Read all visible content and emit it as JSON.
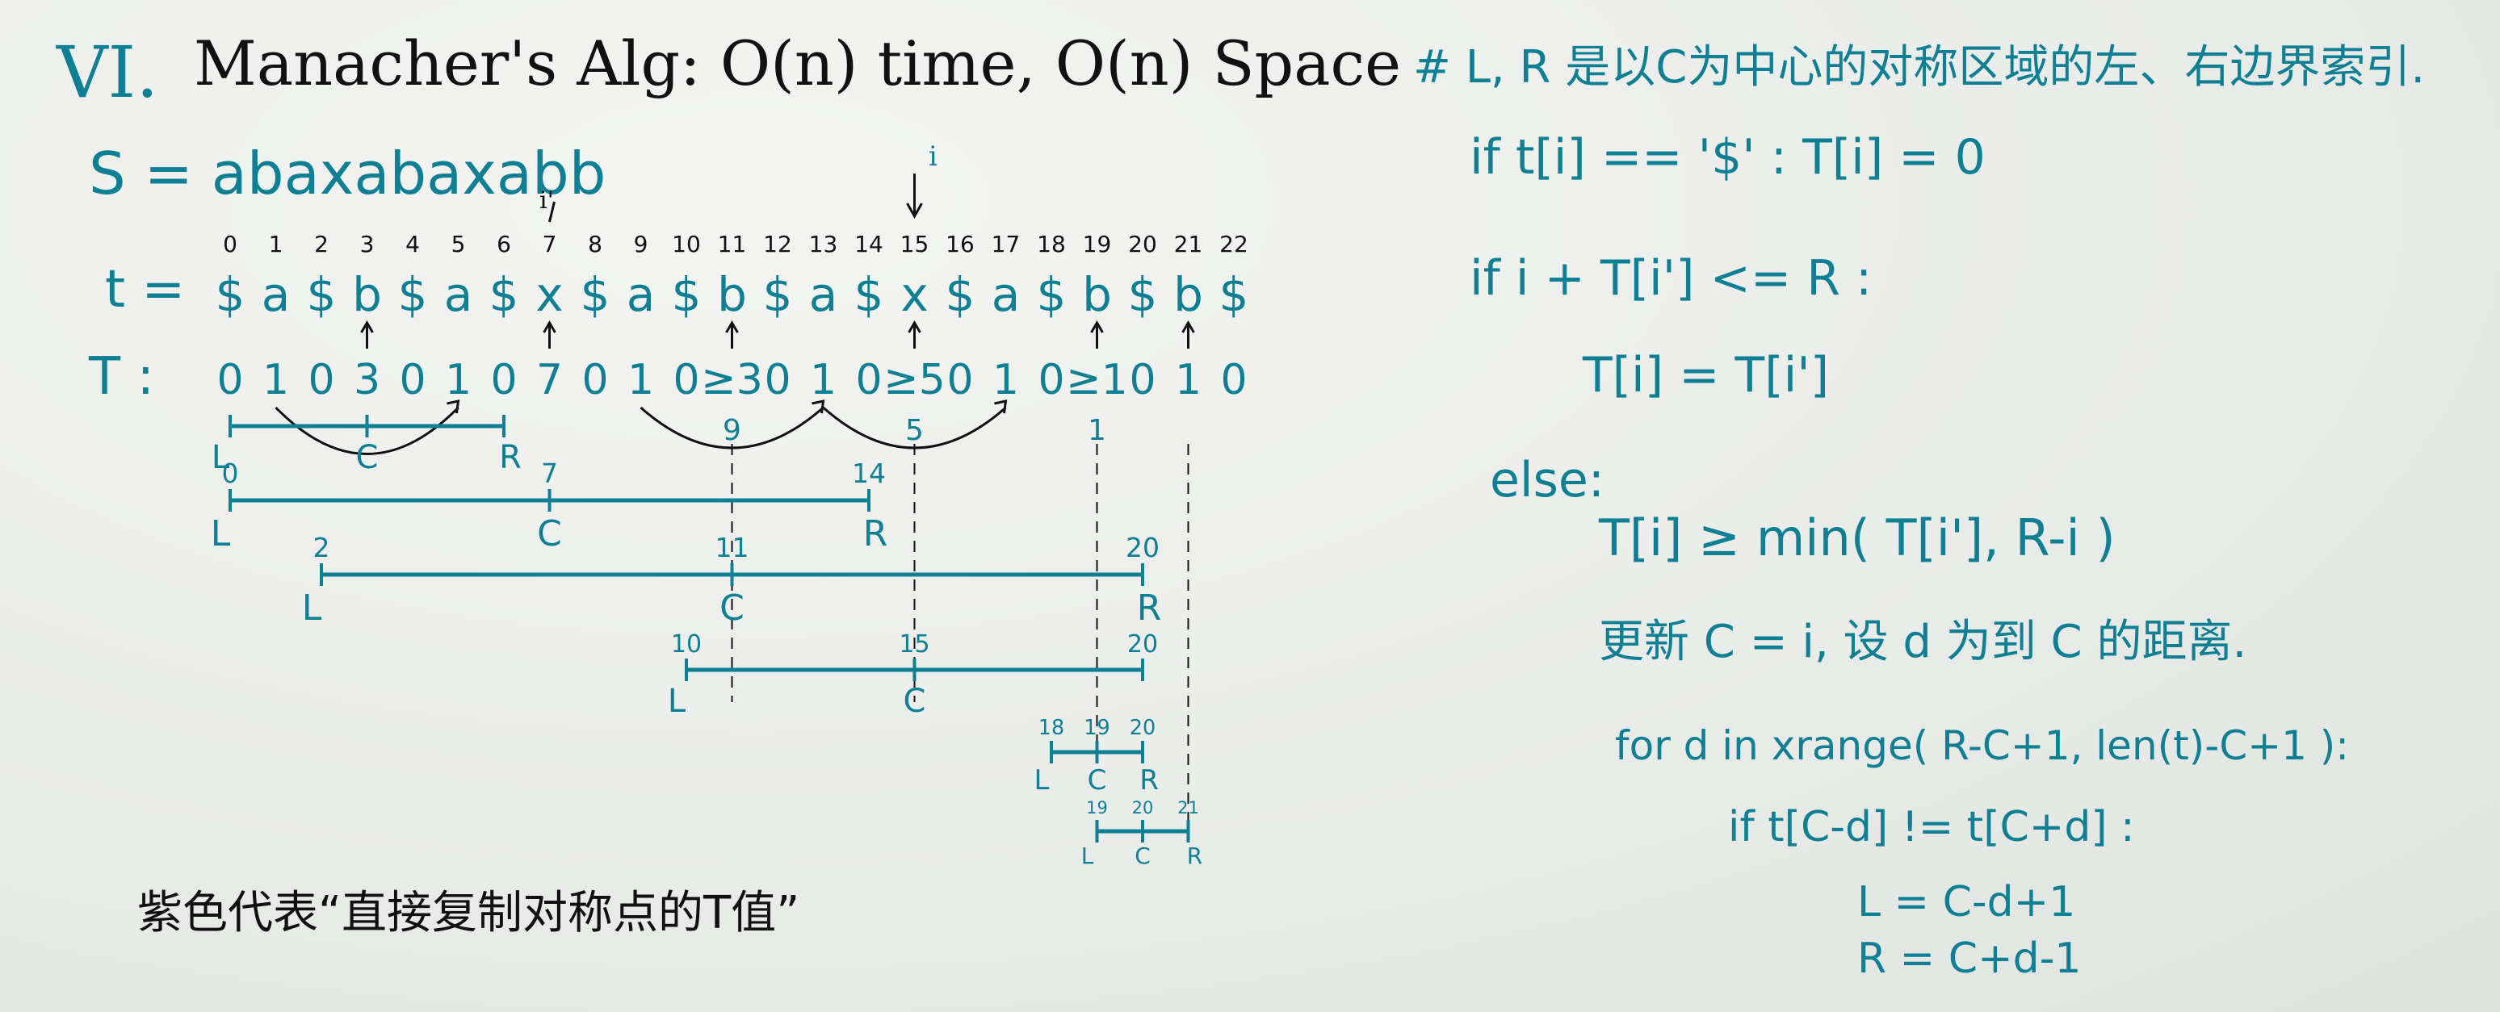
{
  "title": {
    "roman": "VI.",
    "text": "Manacher's Alg: O(n) time, O(n) Space"
  },
  "s_line": "S = abaxabaxabb",
  "t": {
    "label": "t =",
    "indices": [
      "0",
      "1",
      "2",
      "3",
      "4",
      "5",
      "6",
      "7",
      "8",
      "9",
      "10",
      "11",
      "12",
      "13",
      "14",
      "15",
      "16",
      "17",
      "18",
      "19",
      "20",
      "21",
      "22"
    ],
    "chars": [
      "$",
      "a",
      "$",
      "b",
      "$",
      "a",
      "$",
      "x",
      "$",
      "a",
      "$",
      "b",
      "$",
      "a",
      "$",
      "x",
      "$",
      "a",
      "$",
      "b",
      "$",
      "b",
      "$"
    ]
  },
  "T": {
    "label": "T :",
    "values": [
      "0",
      "1",
      "0",
      "3",
      "0",
      "1",
      "0",
      "7",
      "0",
      "1",
      "0",
      "≥3",
      "0",
      "1",
      "0",
      "≥5",
      "0",
      "1",
      "0",
      "≥1",
      "0",
      "1",
      "0"
    ],
    "under_labels": [
      "9",
      "5",
      "1"
    ]
  },
  "pointer_i": "i",
  "pointer_i_prime": "i'",
  "ranges": [
    {
      "L": "L",
      "C": "C",
      "R": "R",
      "l_num": "",
      "c_num": "",
      "r_num": ""
    },
    {
      "L": "L",
      "C": "C",
      "R": "R",
      "l_num": "0",
      "c_num": "7",
      "r_num": "14"
    },
    {
      "L": "L",
      "C": "C",
      "R": "R",
      "l_num": "2",
      "c_num": "11",
      "r_num": "20"
    },
    {
      "L": "L",
      "C": "C",
      "R": "",
      "l_num": "10",
      "c_num": "15",
      "r_num": "20"
    },
    {
      "L": "L",
      "C": "C",
      "R": "R",
      "l_num": "18",
      "c_num": "19",
      "r_num": "20"
    },
    {
      "L": "L",
      "C": "C",
      "R": "R",
      "l_num": "19",
      "c_num": "20",
      "r_num": "21"
    }
  ],
  "note": "紫色代表“直接复制对称点的T值”",
  "right": {
    "heading": "# L, R 是以C为中心的对称区域的左、右边界索引.",
    "rule1": "if t[i] == '$' : T[i] = 0",
    "rule2": "if i + T[i'] <= R :",
    "rule2b": "T[i] = T[i']",
    "else": "else:",
    "rule3": "T[i] ≥ min( T[i'], R-i )",
    "rule4": "更新 C = i, 设 d 为到 C 的距离.",
    "rule5": "for d in xrange( R-C+1, len(t)-C+1 ):",
    "rule6": "if t[C-d] != t[C+d] :",
    "rule7": "L = C-d+1",
    "rule8": "R = C+d-1"
  },
  "colors": {
    "teal": "#0f7f93",
    "black": "#111111",
    "board": "#eceeec"
  }
}
